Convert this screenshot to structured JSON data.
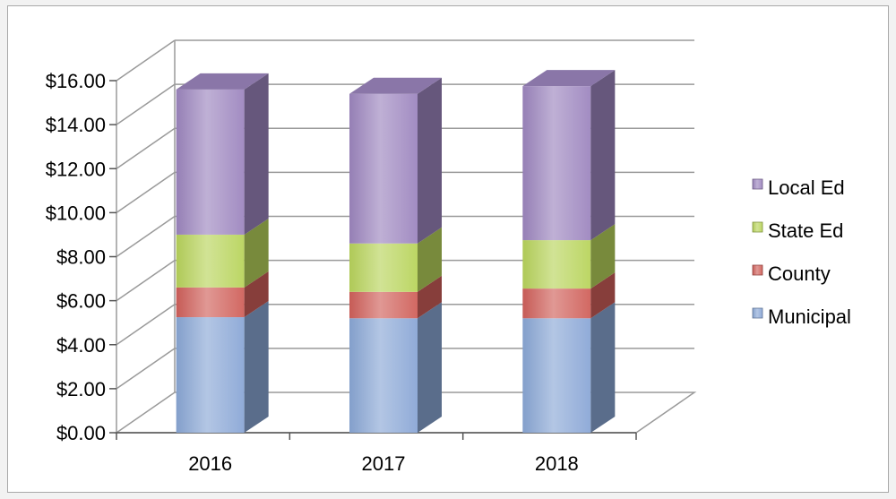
{
  "chart_data": {
    "type": "bar",
    "stacked": true,
    "style": "3d-column",
    "categories": [
      "2016",
      "2017",
      "2018"
    ],
    "series": [
      {
        "name": "Municipal",
        "values": [
          5.25,
          5.2,
          5.2
        ],
        "color": "#8aa7d6"
      },
      {
        "name": "County",
        "values": [
          1.35,
          1.2,
          1.35
        ],
        "color": "#d0605a"
      },
      {
        "name": "State Ed",
        "values": [
          2.4,
          2.2,
          2.2
        ],
        "color": "#b8d45c"
      },
      {
        "name": "Local Ed",
        "values": [
          6.6,
          6.8,
          7.0
        ],
        "color": "#9d86bf"
      }
    ],
    "yticks": [
      "$0.00",
      "$2.00",
      "$4.00",
      "$6.00",
      "$8.00",
      "$10.00",
      "$12.00",
      "$14.00",
      "$16.00"
    ],
    "ylim": [
      0,
      16
    ],
    "title": "",
    "xlabel": "",
    "ylabel": "",
    "legend_position": "right",
    "gridlines": true
  }
}
